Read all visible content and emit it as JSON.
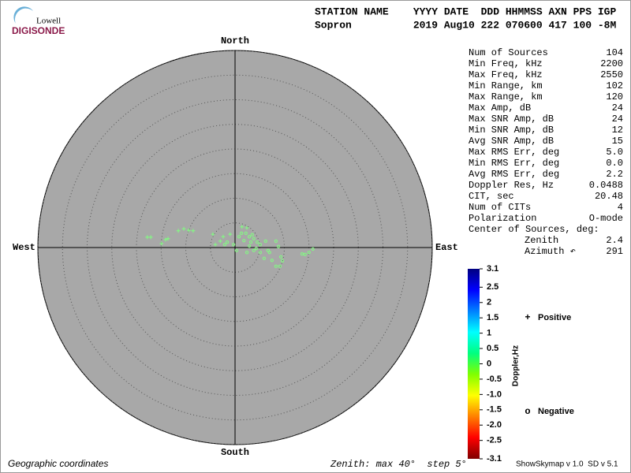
{
  "logo": {
    "top": "Lowell",
    "bottom": "DIGISONDE"
  },
  "header": {
    "columns": "STATION NAME    YYYY DATE  DDD HHMMSS AXN PPS IGP",
    "values": "Sopron          2019 Aug10 222 070600 417 100 -8M"
  },
  "stats": {
    "rows": [
      [
        "Num of Sources",
        "104"
      ],
      [
        "Min Freq, kHz",
        "2200"
      ],
      [
        "Max Freq, kHz",
        "2550"
      ],
      [
        "Min Range, km",
        "102"
      ],
      [
        "Max Range, km",
        "120"
      ],
      [
        "Max Amp, dB",
        "24"
      ],
      [
        "Max SNR Amp, dB",
        "24"
      ],
      [
        "Min SNR Amp, dB",
        "12"
      ],
      [
        "Avg SNR Amp, dB",
        "15"
      ],
      [
        "Max RMS Err, deg",
        "5.0"
      ],
      [
        "Min RMS Err, deg",
        "0.0"
      ],
      [
        "Avg RMS Err, deg",
        "2.2"
      ],
      [
        "Doppler Res, Hz",
        "0.0488"
      ],
      [
        "CIT, sec",
        "20.48"
      ],
      [
        "Num of CITs",
        "4"
      ],
      [
        "Polarization",
        "O-mode"
      ]
    ],
    "center_title": "Center of Sources, deg:",
    "center_rows": [
      [
        "Zenith",
        "2.4"
      ],
      [
        "Azimuth ↶",
        "291"
      ]
    ]
  },
  "footer": {
    "left": "Geographic coordinates",
    "middle": "Zenith: max 40°  step 5°",
    "right": "ShowSkymap v 1.0  SD v 5.1"
  },
  "chart_data": {
    "type": "scatter",
    "projection": "polar",
    "directions": {
      "north": "North",
      "south": "South",
      "east": "East",
      "west": "West"
    },
    "xlim": [
      -40,
      40
    ],
    "ylim": [
      -40,
      40
    ],
    "grid_rings": [
      5,
      10,
      15,
      20,
      25,
      30,
      35,
      40
    ],
    "plot_color": "#a8a8a8",
    "series": [
      {
        "name": "Positive",
        "symbol": "+",
        "color": "#0000cc",
        "marker_color": "#80ff80",
        "x": [
          -17.8,
          -17.1,
          -14.1,
          -13.6,
          -14.9,
          -11.5,
          -10.4,
          -9.4,
          -8.5,
          -4.5,
          -3.0,
          -2.4,
          -1.0,
          1.4,
          2.4,
          -4.0
        ],
        "y": [
          2.1,
          2.1,
          1.6,
          1.8,
          0.8,
          3.4,
          3.8,
          3.5,
          3.4,
          2.7,
          1.3,
          2.2,
          2.7,
          4.2,
          4.0,
          0.6
        ]
      },
      {
        "name": "Negative",
        "symbol": "o",
        "color": "#cc0000",
        "marker_color": "#80ff80",
        "x": [
          13.6,
          14.2,
          15.0,
          15.8,
          9.1,
          8.3,
          7.5,
          7.0,
          6.2,
          8.3,
          8.8,
          3.8,
          3.5,
          1.3,
          0.8,
          2.9,
          4.3,
          5.1,
          5.9,
          2.4,
          0.3,
          -0.3,
          -1.6,
          -2.1,
          5.1,
          1.8,
          3.2,
          4.5,
          2.9,
          9.3,
          9.6,
          6.7,
          2.2,
          3.8
        ],
        "y": [
          -1.3,
          -1.4,
          -1.0,
          -0.3,
          -3.8,
          -3.8,
          -2.6,
          -1.0,
          1.3,
          1.3,
          0.2,
          1.8,
          2.6,
          2.9,
          2.2,
          0.3,
          -0.2,
          -1.0,
          -2.2,
          -1.0,
          -0.6,
          0.6,
          1.1,
          0.6,
          0.6,
          1.4,
          1.1,
          1.1,
          2.2,
          -1.9,
          -2.7,
          -0.6,
          2.9,
          -0.6
        ]
      }
    ],
    "colorbar": {
      "title": "Doppler,Hz",
      "lim": [
        -3.1,
        3.1
      ],
      "colors": [
        "#800000",
        "#ff0000",
        "#ff8000",
        "#ffff00",
        "#80ff00",
        "#00ff80",
        "#00ffff",
        "#0080ff",
        "#0000ff",
        "#000080"
      ],
      "ticks": [
        3.1,
        2.5,
        2,
        1.5,
        1,
        0.5,
        0,
        -0.5,
        {
          "value": -1,
          "label": "-1.0"
        },
        -1.5,
        {
          "value": -2,
          "label": "-2.0"
        },
        -2.5,
        -3.1
      ]
    }
  }
}
